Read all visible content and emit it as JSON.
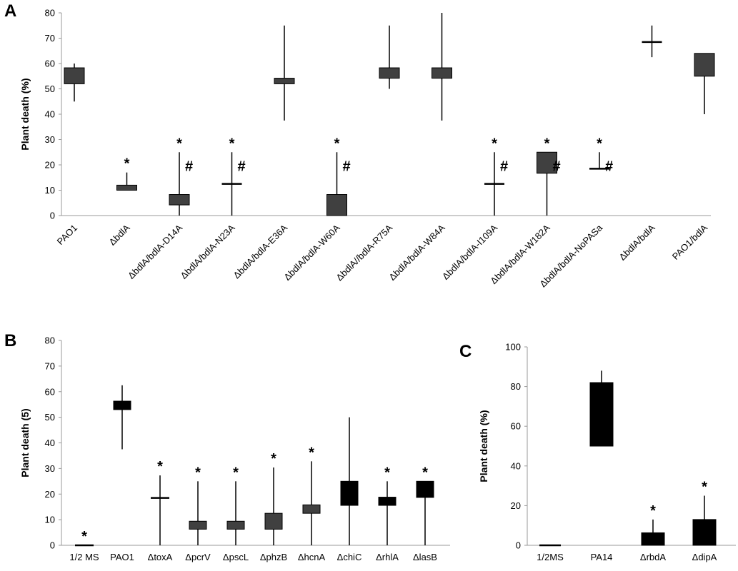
{
  "chart_data": [
    {
      "panel": "A",
      "type": "box",
      "ylabel": "Plant death (%)",
      "ylim": [
        0,
        80
      ],
      "yticks": [
        0,
        10,
        20,
        30,
        40,
        50,
        60,
        70,
        80
      ],
      "box_color": "#404040",
      "categories": [
        "PAO1",
        "ΔbdlA",
        "ΔbdlA/bdlA-D14A",
        "ΔbdlA/bdlA-N23A",
        "ΔbdlA/bdlA-E36A",
        "ΔbdlA/bdlA-W60A",
        "ΔbdlA//bdlA-R75A",
        "ΔbdlA/bdlA-W84A",
        "ΔbdlA/bdlA-I109A",
        "ΔbdlA/bdlA-W182A",
        "ΔbdlA/bdlA-NoPASa",
        "ΔbdlA/bdlA",
        "PAO1/bdlA"
      ],
      "min": [
        45,
        10,
        0,
        0,
        37.5,
        0,
        50,
        37.5,
        0,
        0,
        18.5,
        62.5,
        40
      ],
      "q1": [
        52,
        10,
        4.2,
        12.5,
        52,
        0,
        54.2,
        54.2,
        12.5,
        16.7,
        18.5,
        68.5,
        55
      ],
      "q3": [
        58.3,
        12,
        8.3,
        12.5,
        54.2,
        8.3,
        58.3,
        58.3,
        12.5,
        25,
        18.5,
        68.5,
        64
      ],
      "max": [
        60,
        17,
        25,
        25,
        75,
        25,
        75,
        80,
        25,
        25,
        25,
        75,
        64
      ],
      "significance_star": [
        "",
        "*",
        "*",
        "*",
        "",
        "*",
        "",
        "",
        "*",
        "*",
        "*",
        "",
        ""
      ],
      "significance_hash": [
        "",
        "",
        "#",
        "#",
        "",
        "#",
        "",
        "",
        "#",
        "#",
        "#",
        "",
        ""
      ]
    },
    {
      "panel": "B",
      "type": "box",
      "ylabel": "Plant death (5)",
      "ylim": [
        0,
        80
      ],
      "yticks": [
        0,
        10,
        20,
        30,
        40,
        50,
        60,
        70,
        80
      ],
      "categories": [
        "1/2 MS",
        "PAO1",
        "ΔtoxA",
        "ΔpcrV",
        "ΔpscL",
        "ΔphzB",
        "ΔhcnA",
        "ΔchiC",
        "ΔrhlA",
        "ΔlasB"
      ],
      "colors": [
        "#000000",
        "#000000",
        "#000000",
        "#404040",
        "#404040",
        "#404040",
        "#404040",
        "#000000",
        "#000000",
        "#000000"
      ],
      "min": [
        0,
        37.5,
        0,
        0,
        0,
        0,
        0,
        0,
        0,
        0
      ],
      "q1": [
        0,
        53,
        18.5,
        6.3,
        6.3,
        6.3,
        12.5,
        15.6,
        15.6,
        18.7
      ],
      "q3": [
        0,
        56.3,
        18.5,
        9.4,
        9.4,
        12.5,
        15.8,
        25,
        18.8,
        25
      ],
      "max": [
        0,
        62.5,
        27.3,
        25,
        25,
        30.4,
        32.8,
        50,
        25,
        25
      ],
      "significance_star": [
        "*",
        "",
        "*",
        "*",
        "*",
        "*",
        "*",
        "",
        "*",
        "*"
      ]
    },
    {
      "panel": "C",
      "type": "box",
      "ylabel": "Plant death (%)",
      "ylim": [
        0,
        100
      ],
      "yticks": [
        0,
        20,
        40,
        60,
        80,
        100
      ],
      "box_color": "#000000",
      "categories": [
        "1/2MS",
        "PA14",
        "ΔrbdA",
        "ΔdipA"
      ],
      "min": [
        0,
        50,
        0,
        0
      ],
      "q1": [
        0,
        50,
        0,
        0
      ],
      "q3": [
        0,
        82,
        6.3,
        13
      ],
      "max": [
        0,
        88,
        13,
        25
      ],
      "significance_star": [
        "",
        "",
        "*",
        "*"
      ]
    }
  ]
}
